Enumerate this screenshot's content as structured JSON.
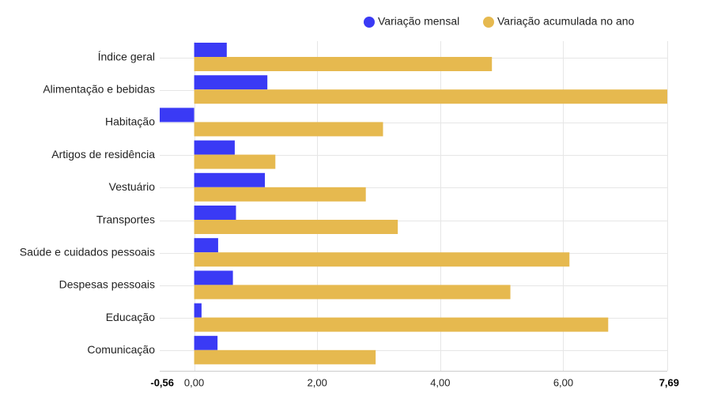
{
  "chart_data": {
    "type": "bar",
    "orientation": "horizontal",
    "categories": [
      "Índice geral",
      "Alimentação e bebidas",
      "Habitação",
      "Artigos de residência",
      "Vestuário",
      "Transportes",
      "Saúde e cuidados pessoais",
      "Despesas pessoais",
      "Educação",
      "Comunicação"
    ],
    "series": [
      {
        "name": "Variação mensal",
        "color": "#3a3af5",
        "values": [
          0.53,
          1.19,
          -0.56,
          0.66,
          1.15,
          0.68,
          0.39,
          0.63,
          0.12,
          0.38
        ]
      },
      {
        "name": "Variação acumulada no ano",
        "color": "#e6b94f",
        "values": [
          4.84,
          7.69,
          3.07,
          1.32,
          2.79,
          3.31,
          6.1,
          5.14,
          6.73,
          2.95
        ]
      }
    ],
    "xlim": [
      -0.56,
      7.69
    ],
    "ticks": [
      {
        "value": -0.56,
        "label": "-0,56",
        "bold": true
      },
      {
        "value": 0,
        "label": "0,00",
        "bold": false
      },
      {
        "value": 2,
        "label": "2,00",
        "bold": false
      },
      {
        "value": 4,
        "label": "4,00",
        "bold": false
      },
      {
        "value": 6,
        "label": "6,00",
        "bold": false
      },
      {
        "value": 7.69,
        "label": "7,69",
        "bold": true
      }
    ],
    "grid": true,
    "legend_position": "top-right"
  }
}
